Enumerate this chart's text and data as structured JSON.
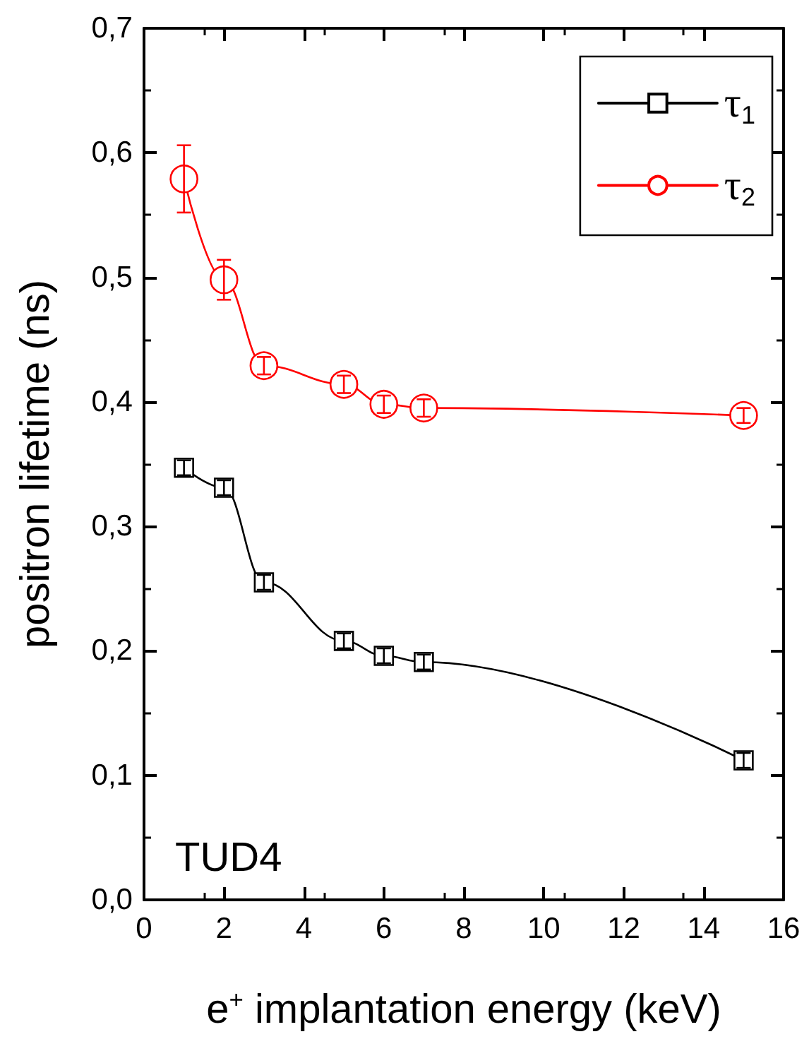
{
  "chart_data": {
    "type": "line",
    "xlabel": "e$^{+}$ implantation energy (keV)",
    "ylabel": "positron lifetime (ns)",
    "x": [
      1,
      2,
      3,
      5,
      6,
      7,
      15
    ],
    "series": [
      {
        "name": "τ$_{1}$",
        "color": "#000000",
        "marker": "square",
        "values": [
          0.347,
          0.331,
          0.255,
          0.208,
          0.196,
          0.191,
          0.112
        ],
        "errors": [
          0.006,
          0.006,
          0.006,
          0.006,
          0.006,
          0.006,
          0.006
        ]
      },
      {
        "name": "τ$_{2}$",
        "color": "#ff0000",
        "marker": "circle",
        "values": [
          0.579,
          0.498,
          0.429,
          0.414,
          0.398,
          0.395,
          0.389
        ],
        "errors": [
          0.027,
          0.016,
          0.007,
          0.007,
          0.007,
          0.007,
          0.006
        ]
      }
    ],
    "xlim": [
      0,
      16
    ],
    "xticks": [
      0,
      2,
      4,
      6,
      8,
      10,
      12,
      14,
      16
    ],
    "ylim": [
      0,
      0.7
    ],
    "yticks": [
      {
        "value": 0,
        "label": "0,0"
      },
      {
        "value": 0.1,
        "label": "0,1"
      },
      {
        "value": 0.2,
        "label": "0,2"
      },
      {
        "value": 0.3,
        "label": "0,3"
      },
      {
        "value": 0.4,
        "label": "0,4"
      },
      {
        "value": 0.5,
        "label": "0,5"
      },
      {
        "value": 0.6,
        "label": "0,6"
      },
      {
        "value": 0.7,
        "label": "0,7"
      }
    ],
    "annotations": [
      "TUD4"
    ],
    "legend": "top right",
    "grid": false,
    "line_style": "solid"
  }
}
